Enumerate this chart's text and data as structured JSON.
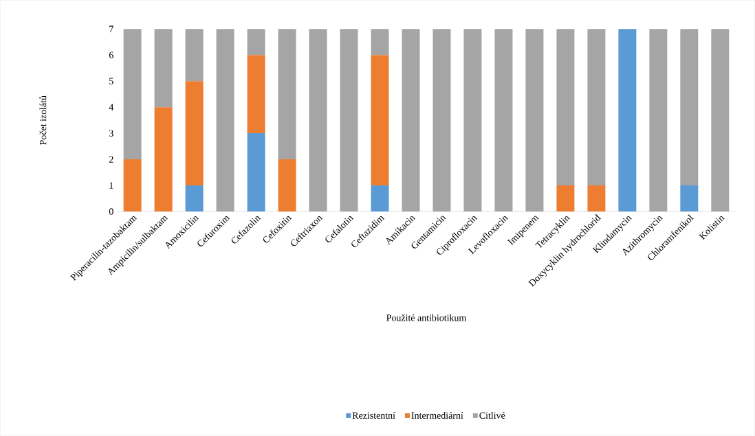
{
  "chart_data": {
    "type": "bar",
    "stacked": true,
    "xlabel": "Použité antibiotikum",
    "ylabel": "Počet izolátů",
    "categories": [
      "Piperacilin-tazobaktam",
      "Ampicilin/sulbaktam",
      "Amoxicilin",
      "Cefuroxim",
      "Cefazolin",
      "Cefoxitin",
      "Ceftriaxon",
      "Cefalotin",
      "Ceftazidim",
      "Amikacin",
      "Gentamicin",
      "Ciprofloxacin",
      "Levofloxacin",
      "Imipenem",
      "Tetracyklin",
      "Doxycyklin hydrochlorid",
      "Klindamycin",
      "Azithromycin",
      "Chloramfenikol",
      "Kolistin"
    ],
    "series": [
      {
        "name": "Rezistentní",
        "color": "#5b9bd5",
        "values": [
          0,
          0,
          1,
          0,
          3,
          0,
          0,
          0,
          1,
          0,
          0,
          0,
          0,
          0,
          0,
          0,
          7,
          0,
          1,
          0
        ]
      },
      {
        "name": "Intermediární",
        "color": "#ed7d31",
        "values": [
          2,
          4,
          4,
          0,
          3,
          2,
          0,
          0,
          5,
          0,
          0,
          0,
          0,
          0,
          1,
          1,
          0,
          0,
          0,
          0
        ]
      },
      {
        "name": "Citlivé",
        "color": "#a5a5a5",
        "values": [
          5,
          3,
          2,
          7,
          1,
          5,
          7,
          7,
          1,
          7,
          7,
          7,
          7,
          7,
          6,
          6,
          0,
          7,
          6,
          7
        ]
      }
    ],
    "ylim": [
      0,
      7
    ],
    "yticks": [
      0,
      1,
      2,
      3,
      4,
      5,
      6,
      7
    ],
    "legend": "bottom"
  }
}
